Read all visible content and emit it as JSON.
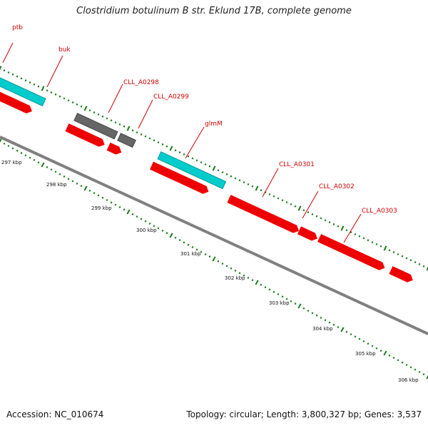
{
  "title": "Clostridium botulinum B str. Eklund 17B, complete genome",
  "footer": {
    "accession": "Accession: NC_010674",
    "summary": "Topology: circular; Length: 3,800,327 bp; Genes: 3,537"
  },
  "colors": {
    "backbone": "#808080",
    "cds": "#ee0000",
    "rna": "#00cccc",
    "other": "#666666",
    "tick": "#1a7a1a",
    "label_line": "#cc0000"
  },
  "kbp_labels": [
    "297 kbp",
    "298 kbp",
    "299 kbp",
    "300 kbp",
    "301 kbp",
    "302 kbp",
    "303 kbp",
    "304 kbp",
    "305 kbp",
    "306 kbp"
  ],
  "gene_labels": [
    "ptb",
    "buk",
    "CLL_A0298",
    "CLL_A0299",
    "glmM",
    "CLL_A0301",
    "CLL_A0302",
    "CLL_A0303"
  ]
}
